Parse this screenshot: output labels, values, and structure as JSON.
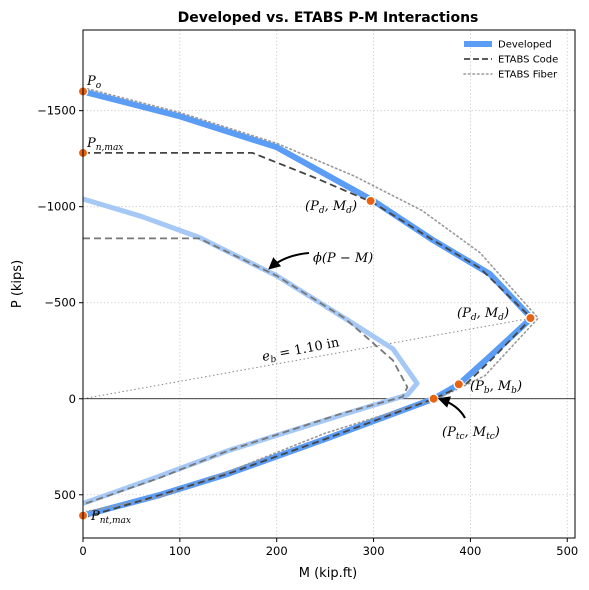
{
  "chart_data": {
    "type": "line",
    "title": "Developed vs. ETABS P-M Interactions",
    "xlabel": "M (kip.ft)",
    "ylabel": "P (kips)",
    "xlim": [
      0,
      508
    ],
    "ylim": [
      -1920,
      725
    ],
    "y_axis_inverted": true,
    "grid": true,
    "grid_style": "dotted",
    "legend_position": "top-right",
    "x_ticks": [
      0,
      100,
      200,
      300,
      400,
      500
    ],
    "x_tick_labels": [
      "0",
      "100",
      "200",
      "300",
      "400",
      "500"
    ],
    "y_ticks": [
      -1500,
      -1000,
      -500,
      0,
      500
    ],
    "y_tick_labels": [
      "−1500",
      "−1000",
      "−500",
      "0",
      "500"
    ],
    "legend": [
      {
        "label": "Developed",
        "color": "#5b9cf5",
        "style": "solid-thick"
      },
      {
        "label": "ETABS Code",
        "color": "#444444",
        "style": "dashed"
      },
      {
        "label": "ETABS Fiber",
        "color": "#999999",
        "style": "dotted"
      }
    ],
    "series": [
      {
        "name": "Developed",
        "role": "nominal",
        "color": "#5b9cf5",
        "points": [
          [
            0,
            -1600
          ],
          [
            100,
            -1470
          ],
          [
            200,
            -1310
          ],
          [
            300,
            -1030
          ],
          [
            360,
            -830
          ],
          [
            420,
            -650
          ],
          [
            463,
            -420
          ],
          [
            420,
            -220
          ],
          [
            388,
            -75
          ],
          [
            362,
            0
          ],
          [
            250,
            210
          ],
          [
            150,
            390
          ],
          [
            80,
            500
          ],
          [
            0,
            608
          ]
        ]
      },
      {
        "name": "Developed",
        "role": "design-phi",
        "color": "#a5c8f5",
        "points": [
          [
            0,
            -1040
          ],
          [
            60,
            -950
          ],
          [
            120,
            -840
          ],
          [
            200,
            -640
          ],
          [
            270,
            -420
          ],
          [
            320,
            -260
          ],
          [
            345,
            -80
          ],
          [
            335,
            -20
          ],
          [
            270,
            80
          ],
          [
            150,
            270
          ],
          [
            70,
            420
          ],
          [
            0,
            545
          ]
        ]
      },
      {
        "name": "ETABS Code",
        "role": "nominal",
        "color": "#444444",
        "points": [
          [
            0,
            -1280
          ],
          [
            175,
            -1280
          ],
          [
            240,
            -1150
          ],
          [
            300,
            -1020
          ],
          [
            360,
            -830
          ],
          [
            410,
            -680
          ],
          [
            463,
            -420
          ],
          [
            425,
            -220
          ],
          [
            395,
            -75
          ],
          [
            362,
            0
          ],
          [
            250,
            210
          ],
          [
            150,
            390
          ],
          [
            80,
            500
          ],
          [
            0,
            620
          ]
        ]
      },
      {
        "name": "ETABS Code",
        "role": "design-phi",
        "color": "#777777",
        "points": [
          [
            0,
            -835
          ],
          [
            120,
            -835
          ],
          [
            200,
            -640
          ],
          [
            270,
            -420
          ],
          [
            320,
            -200
          ],
          [
            335,
            -60
          ],
          [
            330,
            -10
          ],
          [
            265,
            80
          ],
          [
            150,
            270
          ],
          [
            80,
            410
          ],
          [
            0,
            550
          ]
        ]
      },
      {
        "name": "ETABS Fiber",
        "role": "nominal",
        "color": "#999999",
        "points": [
          [
            0,
            -1620
          ],
          [
            100,
            -1490
          ],
          [
            200,
            -1330
          ],
          [
            280,
            -1160
          ],
          [
            350,
            -980
          ],
          [
            410,
            -760
          ],
          [
            470,
            -420
          ],
          [
            415,
            -120
          ],
          [
            370,
            -10
          ],
          [
            250,
            180
          ],
          [
            150,
            380
          ],
          [
            80,
            510
          ],
          [
            0,
            590
          ]
        ]
      }
    ],
    "reference_line": {
      "label": "e_b = 1.10 in",
      "from": [
        0,
        0
      ],
      "to": [
        463,
        -420
      ],
      "style": "dotted",
      "color": "#888888"
    },
    "key_points": [
      {
        "label": "P_o",
        "M": 0,
        "P": -1600
      },
      {
        "label": "P_n,max",
        "M": 0,
        "P": -1280
      },
      {
        "label": "(P_d, M_d)",
        "M": 297,
        "P": -1030
      },
      {
        "label": "(P_d, M_d)",
        "M": 462,
        "P": -420
      },
      {
        "label": "(P_b, M_b)",
        "M": 388,
        "P": -75
      },
      {
        "label": "(P_tc, M_tc)",
        "M": 362,
        "P": 0
      },
      {
        "label": "P_nt,max",
        "M": 0,
        "P": 608
      }
    ],
    "annotations": [
      {
        "text": "ϕ(P − M)",
        "arrow_to": [
          192,
          -680
        ]
      },
      {
        "text": "e_b = 1.10 in"
      }
    ]
  }
}
